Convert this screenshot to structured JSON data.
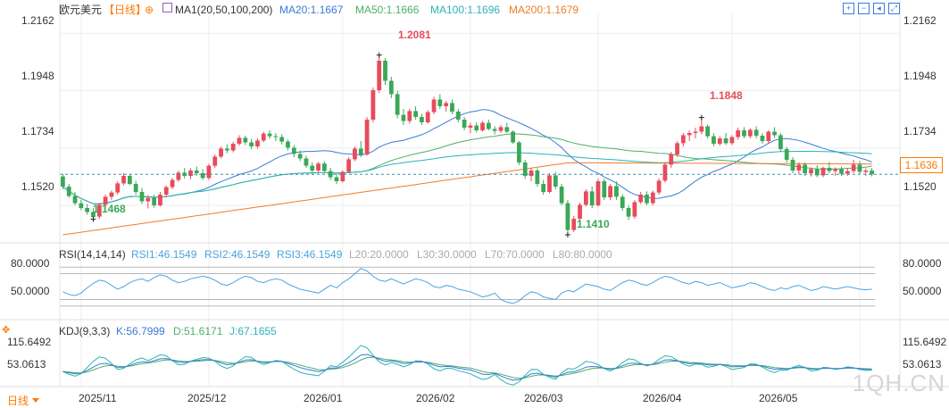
{
  "header": {
    "symbol": "欧元美元",
    "period_tag": "【日线】",
    "ma_indicator": "MA1(20,50,100,200)",
    "ma20": "MA20:1.1667",
    "ma50": "MA50:1.1666",
    "ma100": "MA100:1.1696",
    "ma200": "MA200:1.1679"
  },
  "rsi_header": {
    "name": "RSI(14,14,14)",
    "rsi1": "RSI1:46.1549",
    "rsi2": "RSI2:46.1549",
    "rsi3": "RSI3:46.1549",
    "l20": "L20:20.0000",
    "l30": "L30:30.0000",
    "l70": "L70:70.0000",
    "l80": "L80:80.0000"
  },
  "kdj_header": {
    "name": "KDJ(9,3,3)",
    "k": "K:56.7999",
    "d": "D:51.6171",
    "j": "J:67.1655"
  },
  "current_price": "1.1636",
  "period_button": "日线",
  "watermark": "1QH.CN",
  "colors": {
    "up": "#e84b5b",
    "down": "#3aa856",
    "ma20": "#3a7bd5",
    "ma50": "#4caf6a",
    "ma100": "#2bb3b8",
    "ma200": "#f07c2b",
    "rsi": "#4aa3df",
    "grid": "#eeeeee",
    "accent": "#ff7a00"
  },
  "icons": [
    "settings-icon",
    "zoom-in-icon",
    "zoom-out-icon",
    "shift-back-icon",
    "fullscreen-icon",
    "move-icon"
  ],
  "chart_data": [
    {
      "type": "candlestick",
      "title": "欧元美元",
      "yticks": [
        "1.2162",
        "1.1948",
        "1.1734",
        "1.1520"
      ],
      "ylim": [
        1.138,
        1.224
      ],
      "xticks": [
        "2025/11",
        "2025/12",
        "2026/01",
        "2026/02",
        "2026/03",
        "2026/04",
        "2026/05"
      ],
      "annotations": [
        {
          "label": "1.2081",
          "type": "high"
        },
        {
          "label": "1.1468",
          "type": "low"
        },
        {
          "label": "1.1410",
          "type": "low"
        },
        {
          "label": "1.1848",
          "type": "high"
        }
      ],
      "last_close": 1.1636,
      "ohlc": [
        [
          1.1628,
          1.1638,
          1.158,
          1.159
        ],
        [
          1.159,
          1.16,
          1.1548,
          1.1555
        ],
        [
          1.1555,
          1.157,
          1.152,
          1.1528
        ],
        [
          1.1528,
          1.154,
          1.1502,
          1.151
        ],
        [
          1.151,
          1.1525,
          1.1485,
          1.1495
        ],
        [
          1.1495,
          1.151,
          1.1468,
          1.1476
        ],
        [
          1.1478,
          1.153,
          1.147,
          1.1522
        ],
        [
          1.1522,
          1.156,
          1.1515,
          1.1552
        ],
        [
          1.1552,
          1.1575,
          1.154,
          1.1568
        ],
        [
          1.1568,
          1.161,
          1.156,
          1.1602
        ],
        [
          1.1602,
          1.164,
          1.1595,
          1.163
        ],
        [
          1.163,
          1.1638,
          1.1595,
          1.16
        ],
        [
          1.16,
          1.1612,
          1.156,
          1.157
        ],
        [
          1.157,
          1.1585,
          1.1525,
          1.1535
        ],
        [
          1.1535,
          1.1558,
          1.1508,
          1.1548
        ],
        [
          1.1548,
          1.156,
          1.1512,
          1.152
        ],
        [
          1.152,
          1.157,
          1.1515,
          1.156
        ],
        [
          1.156,
          1.1595,
          1.1552,
          1.1588
        ],
        [
          1.1588,
          1.1622,
          1.158,
          1.1615
        ],
        [
          1.1615,
          1.165,
          1.1608,
          1.1642
        ],
        [
          1.1642,
          1.166,
          1.162,
          1.163
        ],
        [
          1.163,
          1.1658,
          1.1618,
          1.165
        ],
        [
          1.165,
          1.1665,
          1.163,
          1.164
        ],
        [
          1.164,
          1.1655,
          1.1615,
          1.1622
        ],
        [
          1.1622,
          1.1675,
          1.1615,
          1.1668
        ],
        [
          1.1668,
          1.171,
          1.166,
          1.1702
        ],
        [
          1.1702,
          1.174,
          1.1695,
          1.1732
        ],
        [
          1.1732,
          1.1748,
          1.1715,
          1.1725
        ],
        [
          1.1725,
          1.1758,
          1.1718,
          1.175
        ],
        [
          1.175,
          1.1782,
          1.1742,
          1.1772
        ],
        [
          1.1772,
          1.178,
          1.1745,
          1.1755
        ],
        [
          1.1755,
          1.1768,
          1.173,
          1.174
        ],
        [
          1.174,
          1.177,
          1.1732,
          1.1762
        ],
        [
          1.1762,
          1.1795,
          1.1755,
          1.1788
        ],
        [
          1.1788,
          1.18,
          1.1768,
          1.1778
        ],
        [
          1.1778,
          1.179,
          1.176,
          1.1775
        ],
        [
          1.1775,
          1.1785,
          1.1748,
          1.1758
        ],
        [
          1.1758,
          1.1765,
          1.1725,
          1.1735
        ],
        [
          1.1735,
          1.1745,
          1.17,
          1.1712
        ],
        [
          1.1712,
          1.1725,
          1.1685,
          1.1695
        ],
        [
          1.1695,
          1.1705,
          1.166,
          1.1668
        ],
        [
          1.1668,
          1.168,
          1.164,
          1.165
        ],
        [
          1.165,
          1.1682,
          1.1642,
          1.1676
        ],
        [
          1.1676,
          1.1685,
          1.164,
          1.1648
        ],
        [
          1.1648,
          1.166,
          1.1615,
          1.1625
        ],
        [
          1.1625,
          1.164,
          1.16,
          1.161
        ],
        [
          1.161,
          1.165,
          1.1605,
          1.1645
        ],
        [
          1.1645,
          1.17,
          1.164,
          1.1692
        ],
        [
          1.1692,
          1.174,
          1.1685,
          1.1732
        ],
        [
          1.1732,
          1.176,
          1.17,
          1.171
        ],
        [
          1.171,
          1.185,
          1.1705,
          1.184
        ],
        [
          1.184,
          1.196,
          1.183,
          1.195
        ],
        [
          1.195,
          1.2081,
          1.194,
          1.206
        ],
        [
          1.206,
          1.207,
          1.197,
          1.1985
        ],
        [
          1.1985,
          1.2,
          1.192,
          1.1935
        ],
        [
          1.1935,
          1.1948,
          1.1845,
          1.1858
        ],
        [
          1.1858,
          1.188,
          1.182,
          1.1835
        ],
        [
          1.1835,
          1.188,
          1.1825,
          1.1872
        ],
        [
          1.1872,
          1.189,
          1.184,
          1.185
        ],
        [
          1.185,
          1.1862,
          1.182,
          1.183
        ],
        [
          1.183,
          1.1875,
          1.1825,
          1.1868
        ],
        [
          1.1868,
          1.1925,
          1.186,
          1.1915
        ],
        [
          1.1915,
          1.1935,
          1.188,
          1.189
        ],
        [
          1.189,
          1.191,
          1.187,
          1.1902
        ],
        [
          1.1902,
          1.1915,
          1.186,
          1.187
        ],
        [
          1.187,
          1.188,
          1.183,
          1.184
        ],
        [
          1.184,
          1.185,
          1.18,
          1.181
        ],
        [
          1.181,
          1.1828,
          1.179,
          1.1818
        ],
        [
          1.1818,
          1.183,
          1.1792,
          1.18
        ],
        [
          1.18,
          1.1835,
          1.1795,
          1.1828
        ],
        [
          1.1828,
          1.184,
          1.18,
          1.1805
        ],
        [
          1.1805,
          1.1815,
          1.1785,
          1.1798
        ],
        [
          1.1798,
          1.182,
          1.179,
          1.1812
        ],
        [
          1.1812,
          1.1828,
          1.179,
          1.1795
        ],
        [
          1.1795,
          1.18,
          1.175,
          1.1755
        ],
        [
          1.1755,
          1.176,
          1.167,
          1.168
        ],
        [
          1.168,
          1.169,
          1.162,
          1.163
        ],
        [
          1.163,
          1.166,
          1.161,
          1.165
        ],
        [
          1.165,
          1.1658,
          1.159,
          1.16
        ],
        [
          1.16,
          1.1615,
          1.156,
          1.157
        ],
        [
          1.157,
          1.164,
          1.1565,
          1.1632
        ],
        [
          1.1632,
          1.1645,
          1.158,
          1.159
        ],
        [
          1.159,
          1.16,
          1.152,
          1.1528
        ],
        [
          1.1528,
          1.154,
          1.141,
          1.1428
        ],
        [
          1.1428,
          1.148,
          1.142,
          1.147
        ],
        [
          1.147,
          1.153,
          1.1462,
          1.1522
        ],
        [
          1.1522,
          1.158,
          1.1515,
          1.1572
        ],
        [
          1.1572,
          1.159,
          1.151,
          1.152
        ],
        [
          1.152,
          1.162,
          1.1515,
          1.161
        ],
        [
          1.161,
          1.162,
          1.154,
          1.155
        ],
        [
          1.155,
          1.16,
          1.154,
          1.1592
        ],
        [
          1.1592,
          1.161,
          1.154,
          1.1552
        ],
        [
          1.1552,
          1.1562,
          1.15,
          1.151
        ],
        [
          1.151,
          1.152,
          1.1465,
          1.1478
        ],
        [
          1.1478,
          1.154,
          1.147,
          1.1532
        ],
        [
          1.1532,
          1.157,
          1.1525,
          1.156
        ],
        [
          1.156,
          1.1572,
          1.152,
          1.1528
        ],
        [
          1.1528,
          1.1575,
          1.152,
          1.1568
        ],
        [
          1.1568,
          1.162,
          1.156,
          1.1612
        ],
        [
          1.1612,
          1.168,
          1.1605,
          1.1672
        ],
        [
          1.1672,
          1.172,
          1.166,
          1.171
        ],
        [
          1.171,
          1.176,
          1.17,
          1.1752
        ],
        [
          1.1752,
          1.179,
          1.174,
          1.1782
        ],
        [
          1.1782,
          1.18,
          1.176,
          1.179
        ],
        [
          1.179,
          1.181,
          1.177,
          1.1795
        ],
        [
          1.1795,
          1.1848,
          1.1785,
          1.1815
        ],
        [
          1.1815,
          1.1822,
          1.177,
          1.1778
        ],
        [
          1.1778,
          1.179,
          1.174,
          1.175
        ],
        [
          1.175,
          1.1778,
          1.1742,
          1.177
        ],
        [
          1.177,
          1.179,
          1.1745,
          1.1752
        ],
        [
          1.1752,
          1.1782,
          1.1745,
          1.1775
        ],
        [
          1.1775,
          1.181,
          1.1765,
          1.18
        ],
        [
          1.18,
          1.1812,
          1.177,
          1.1778
        ],
        [
          1.1778,
          1.1808,
          1.177,
          1.1802
        ],
        [
          1.1802,
          1.1815,
          1.177,
          1.178
        ],
        [
          1.178,
          1.179,
          1.175,
          1.176
        ],
        [
          1.176,
          1.18,
          1.1752,
          1.1795
        ],
        [
          1.1795,
          1.1812,
          1.1772,
          1.1782
        ],
        [
          1.1782,
          1.179,
          1.172,
          1.173
        ],
        [
          1.173,
          1.1738,
          1.168,
          1.169
        ],
        [
          1.169,
          1.17,
          1.164,
          1.165
        ],
        [
          1.165,
          1.168,
          1.1635,
          1.1672
        ],
        [
          1.1672,
          1.168,
          1.163,
          1.164
        ],
        [
          1.164,
          1.1662,
          1.1628,
          1.1655
        ],
        [
          1.1655,
          1.167,
          1.1625,
          1.1632
        ],
        [
          1.1632,
          1.1665,
          1.1625,
          1.166
        ],
        [
          1.166,
          1.1682,
          1.164,
          1.1648
        ],
        [
          1.1648,
          1.1662,
          1.163,
          1.1656
        ],
        [
          1.1656,
          1.1665,
          1.163,
          1.1638
        ],
        [
          1.1638,
          1.166,
          1.163,
          1.1648
        ],
        [
          1.1648,
          1.169,
          1.164,
          1.1672
        ],
        [
          1.1672,
          1.1685,
          1.1635,
          1.1645
        ],
        [
          1.1645,
          1.1658,
          1.163,
          1.165
        ],
        [
          1.165,
          1.166,
          1.1628,
          1.1636
        ]
      ]
    },
    {
      "type": "line",
      "title": "RSI(14,14,14)",
      "yticks": [
        "80.0000",
        "50.0000"
      ],
      "ylim": [
        10,
        90
      ],
      "reference_lines": [
        20,
        30,
        70,
        80
      ],
      "series": [
        {
          "name": "RSI1",
          "last": 46.1549,
          "values": [
            42,
            38,
            36,
            40,
            48,
            55,
            60,
            58,
            52,
            46,
            50,
            56,
            60,
            62,
            58,
            64,
            68,
            66,
            60,
            56,
            58,
            62,
            66,
            64,
            60,
            54,
            52,
            56,
            62,
            66,
            64,
            58,
            56,
            60,
            62,
            60,
            54,
            50,
            46,
            44,
            42,
            40,
            46,
            52,
            48,
            56,
            62,
            70,
            78,
            74,
            66,
            60,
            58,
            62,
            58,
            54,
            58,
            62,
            60,
            56,
            50,
            48,
            52,
            50,
            46,
            42,
            38,
            34,
            36,
            40,
            30,
            26,
            24,
            28,
            36,
            42,
            40,
            34,
            32,
            30,
            40,
            44,
            42,
            48,
            54,
            52,
            50,
            46,
            44,
            50,
            56,
            60,
            58,
            54,
            52,
            56,
            62,
            66,
            64,
            60,
            56,
            54,
            58,
            56,
            52,
            54,
            56,
            52,
            48,
            52,
            56,
            54,
            50,
            46,
            44,
            48,
            46,
            50,
            52,
            48,
            44,
            46,
            50,
            48,
            46,
            48,
            50,
            48,
            46,
            45,
            46
          ]
        }
      ]
    },
    {
      "type": "line",
      "title": "KDJ(9,3,3)",
      "yticks": [
        "115.6492",
        "53.0613"
      ],
      "series": [
        {
          "name": "K",
          "last": 56.7999
        },
        {
          "name": "D",
          "last": 51.6171
        },
        {
          "name": "J",
          "last": 67.1655
        }
      ]
    }
  ]
}
